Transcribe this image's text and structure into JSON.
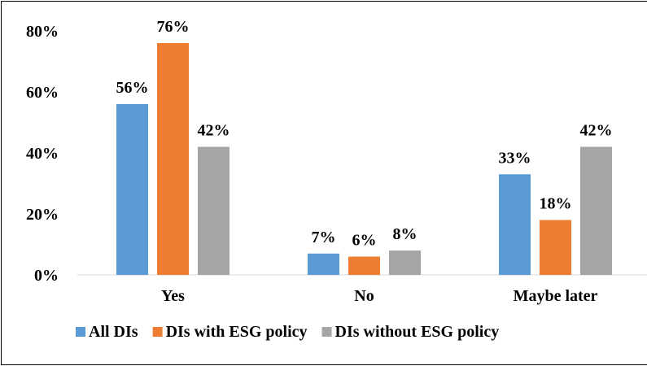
{
  "chart_data": {
    "type": "bar",
    "categories": [
      "Yes",
      "No",
      "Maybe later"
    ],
    "series": [
      {
        "name": "All DIs",
        "values": [
          56,
          7,
          33
        ],
        "color": "#5B9BD5"
      },
      {
        "name": "DIs with ESG policy",
        "values": [
          76,
          6,
          18
        ],
        "color": "#ED7D31"
      },
      {
        "name": "DIs without ESG policy",
        "values": [
          42,
          8,
          42
        ],
        "color": "#A5A5A5"
      }
    ],
    "data_labels": [
      [
        "56%",
        "7%",
        "33%"
      ],
      [
        "76%",
        "6%",
        "18%"
      ],
      [
        "42%",
        "8%",
        "42%"
      ]
    ],
    "y_ticks": [
      "0%",
      "20%",
      "40%",
      "60%",
      "80%"
    ],
    "y_tick_values": [
      0,
      20,
      40,
      60,
      80
    ],
    "ylim": [
      0,
      80
    ],
    "grid": false,
    "legend_position": "bottom",
    "axis_color": "#D9D9D9"
  }
}
